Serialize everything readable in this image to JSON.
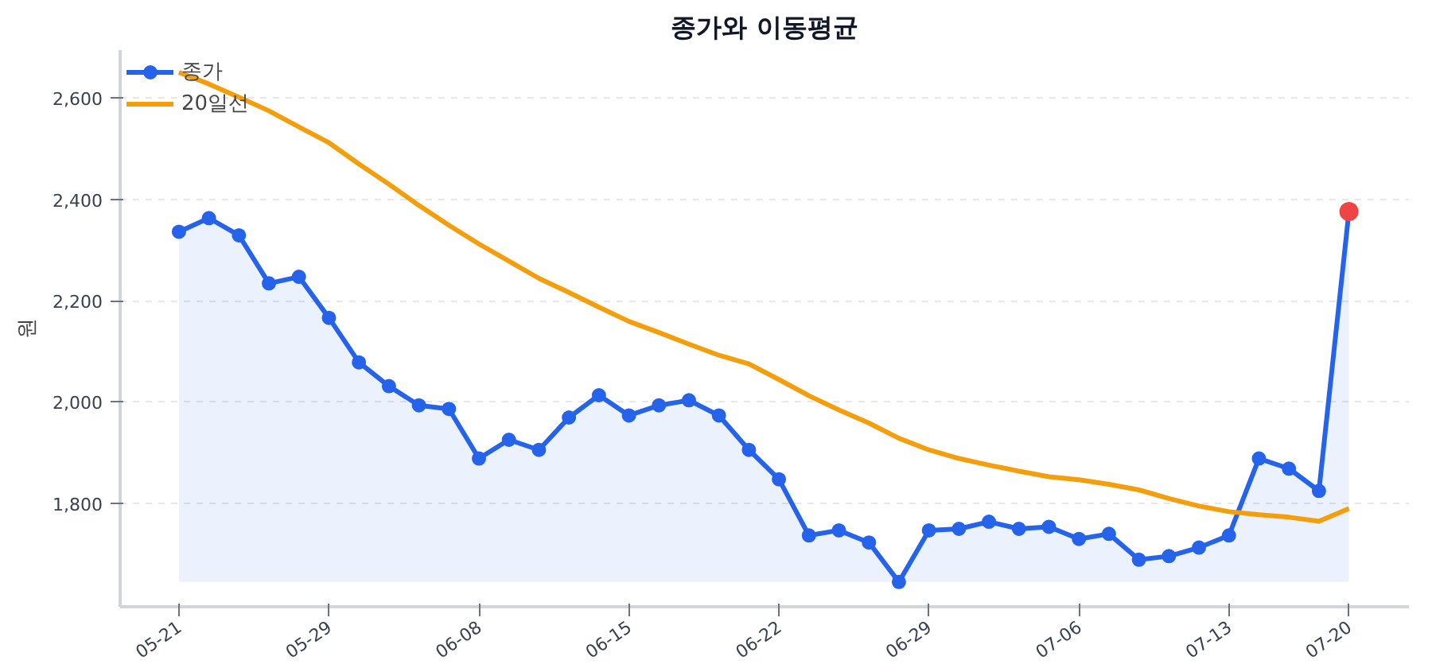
{
  "chart_data": {
    "type": "line",
    "title": "종가와 이동평균",
    "ylabel": "원",
    "categories": [
      "05-21",
      null,
      null,
      null,
      null,
      "05-29",
      null,
      null,
      null,
      null,
      "06-08",
      null,
      null,
      null,
      null,
      "06-15",
      null,
      null,
      null,
      null,
      "06-22",
      null,
      null,
      null,
      null,
      "06-29",
      null,
      null,
      null,
      null,
      "07-06",
      null,
      null,
      null,
      null,
      "07-13",
      null,
      null,
      null,
      "07-20"
    ],
    "series": [
      {
        "name": "종가",
        "type": "area",
        "color": "#2563eb",
        "marker": "circle",
        "colors": [
          "#2563eb",
          "#2563eb",
          "#2563eb",
          "#2563eb",
          "#2563eb",
          "#2563eb",
          "#2563eb",
          "#2563eb",
          "#2563eb",
          "#2563eb",
          "#2563eb",
          "#2563eb",
          "#2563eb",
          "#2563eb",
          "#2563eb",
          "#2563eb",
          "#2563eb",
          "#2563eb",
          "#2563eb",
          "#2563eb",
          "#2563eb",
          "#2563eb",
          "#2563eb",
          "#2563eb",
          "#2563eb",
          "#2563eb",
          "#2563eb",
          "#2563eb",
          "#2563eb",
          "#2563eb",
          "#2563eb",
          "#2563eb",
          "#2563eb",
          "#2563eb",
          "#2563eb",
          "#2563eb",
          "#2563eb",
          "#2563eb",
          "#2563eb",
          "#ef4444"
        ],
        "values": [
          2336,
          2363,
          2329,
          2234,
          2247,
          2166,
          2078,
          2031,
          1993,
          1986,
          1888,
          1925,
          1905,
          1969,
          2013,
          1973,
          1993,
          2003,
          1973,
          1905,
          1847,
          1736,
          1746,
          1722,
          1644,
          1746,
          1749,
          1763,
          1749,
          1753,
          1729,
          1739,
          1688,
          1695,
          1712,
          1736,
          1888,
          1868,
          1824,
          2376
        ]
      },
      {
        "name": "20일선",
        "color": "#f59e0b",
        "marker": "none",
        "values": [
          2651,
          2628,
          2602,
          2575,
          2543,
          2512,
          2470,
          2430,
          2388,
          2349,
          2312,
          2278,
          2244,
          2216,
          2187,
          2159,
          2137,
          2114,
          2092,
          2075,
          2044,
          2012,
          1984,
          1958,
          1928,
          1905,
          1888,
          1875,
          1863,
          1852,
          1846,
          1837,
          1826,
          1809,
          1794,
          1783,
          1777,
          1772,
          1764,
          1789
        ]
      }
    ],
    "ylim": [
      1595,
      2695
    ],
    "yticks": [
      {
        "value": 1800,
        "label": "1,800"
      },
      {
        "value": 2000,
        "label": "2,000"
      },
      {
        "value": 2200,
        "label": "2,200"
      },
      {
        "value": 2400,
        "label": "2,400"
      },
      {
        "value": 2600,
        "label": "2,600"
      }
    ],
    "grid": "y",
    "legend": "top left",
    "line_style": "solid"
  }
}
